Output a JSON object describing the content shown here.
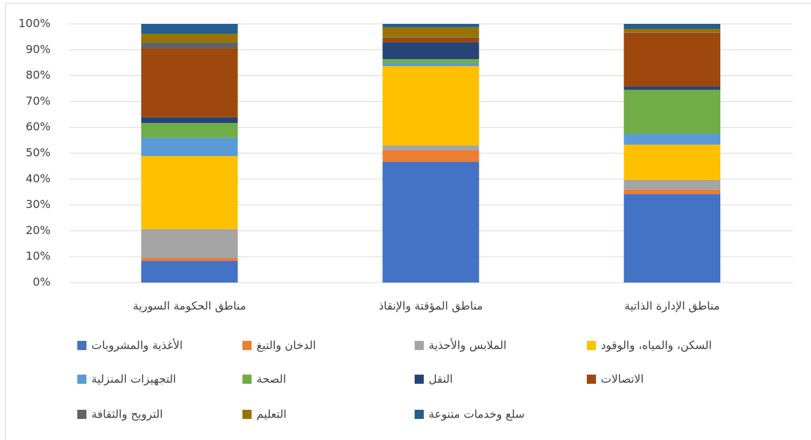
{
  "chart_data": {
    "type": "stacked_bar_percent",
    "categories": [
      "مناطق الحكومة السورية",
      "مناطق المؤقتة والإنقاذ",
      "مناطق الإدارة الذاتية"
    ],
    "series": [
      {
        "name": "الأغذية والمشروبات",
        "color": "#4472c4",
        "values": [
          8.4,
          46.7,
          34.2
        ]
      },
      {
        "name": "الدخان والتبغ",
        "color": "#ed7d31",
        "values": [
          1.1,
          4.4,
          1.7
        ]
      },
      {
        "name": "الملابس والأحذية",
        "color": "#a5a5a5",
        "values": [
          11.2,
          1.9,
          3.8
        ]
      },
      {
        "name": "السكن، والمياه، والوقود",
        "color": "#ffc000",
        "values": [
          28.2,
          30.7,
          13.6
        ]
      },
      {
        "name": "التجهيزات المنزلية",
        "color": "#5b9bd5",
        "values": [
          7.1,
          1.1,
          4.3
        ]
      },
      {
        "name": "الصحة",
        "color": "#70ad47",
        "values": [
          5.7,
          1.6,
          16.9
        ]
      },
      {
        "name": "النقل",
        "color": "#264478",
        "values": [
          2.2,
          6.5,
          1.3
        ]
      },
      {
        "name": "الاتصالات",
        "color": "#9e480e",
        "values": [
          26.6,
          1.7,
          20.7
        ]
      },
      {
        "name": "الترويح والثقافة",
        "color": "#636363",
        "values": [
          2.4,
          0.3,
          0.2
        ]
      },
      {
        "name": "التعليم",
        "color": "#997300",
        "values": [
          3.3,
          3.8,
          1.4
        ]
      },
      {
        "name": "سلع وخدمات متنوعة",
        "color": "#255e91",
        "values": [
          3.8,
          1.3,
          1.9
        ]
      }
    ],
    "ylim": [
      0,
      100
    ],
    "yticks": [
      {
        "value": 0,
        "label": "0%"
      },
      {
        "value": 10,
        "label": "10%"
      },
      {
        "value": 20,
        "label": "20%"
      },
      {
        "value": 30,
        "label": "30%"
      },
      {
        "value": 40,
        "label": "40%"
      },
      {
        "value": 50,
        "label": "50%"
      },
      {
        "value": 60,
        "label": "60%"
      },
      {
        "value": 70,
        "label": "70%"
      },
      {
        "value": 80,
        "label": "80%"
      },
      {
        "value": 90,
        "label": "90%"
      },
      {
        "value": 100,
        "label": "100%"
      }
    ],
    "grid": true,
    "legend": "bottom"
  }
}
